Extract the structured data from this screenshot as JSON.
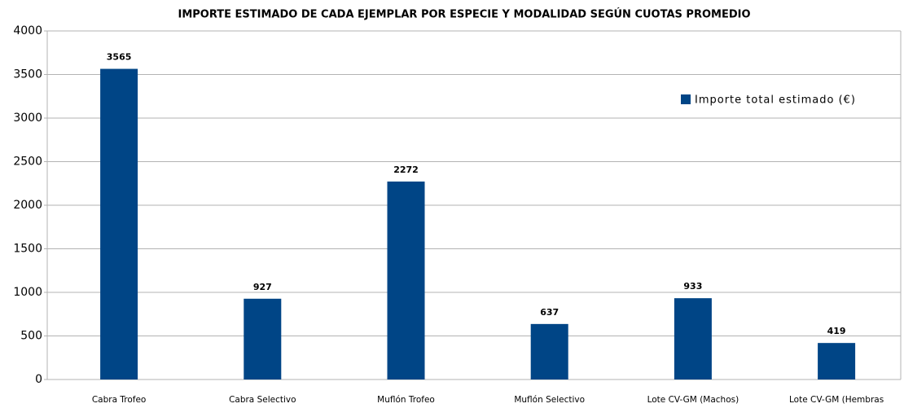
{
  "chart_data": {
    "type": "bar",
    "title": "IMPORTE ESTIMADO DE CADA EJEMPLAR POR ESPECIE Y MODALIDAD SEGÚN CUOTAS PROMEDIO",
    "categories": [
      "Cabra Trofeo",
      "Cabra Selectivo",
      "Muflón Trofeo",
      "Muflón Selectivo",
      "Lote CV-GM (Machos)",
      "Lote CV-GM (Hembras"
    ],
    "series": [
      {
        "name": "Importe total estimado (€)",
        "color": "#004586",
        "values": [
          3565,
          927,
          2272,
          637,
          933,
          419
        ]
      }
    ],
    "ylim": [
      0,
      4000
    ],
    "yticks": [
      0,
      500,
      1000,
      1500,
      2000,
      2500,
      3000,
      3500,
      4000
    ],
    "grid": true,
    "legend": "top-right"
  }
}
